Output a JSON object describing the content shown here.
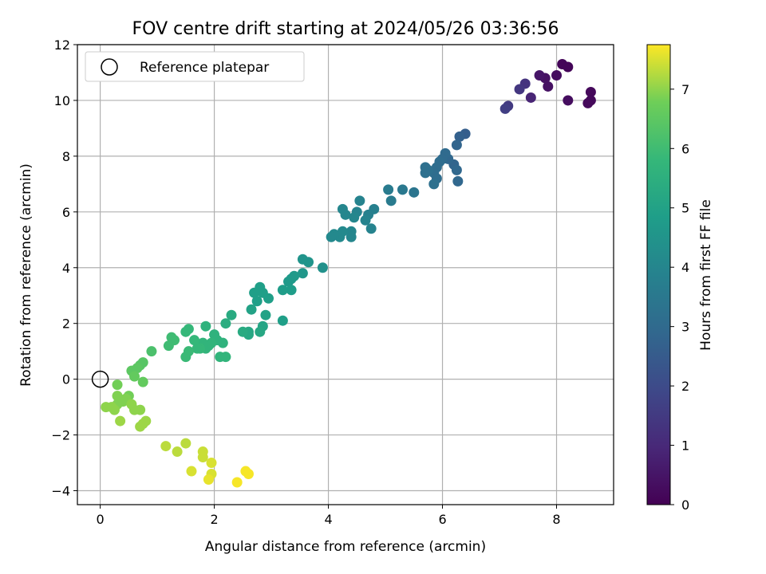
{
  "chart_data": {
    "type": "scatter",
    "title": "FOV centre drift starting at 2024/05/26 03:36:56",
    "xlabel": "Angular distance from reference (arcmin)",
    "ylabel": "Rotation from reference (arcmin)",
    "xlim": [
      -0.4,
      9.0
    ],
    "ylim": [
      -4.5,
      12.0
    ],
    "xticks": [
      0,
      2,
      4,
      6,
      8
    ],
    "xtick_labels": [
      "0",
      "2",
      "4",
      "6",
      "8"
    ],
    "yticks": [
      -4,
      -2,
      0,
      2,
      4,
      6,
      8,
      10,
      12
    ],
    "ytick_labels": [
      "−4",
      "−2",
      "0",
      "2",
      "4",
      "6",
      "8",
      "10",
      "12"
    ],
    "grid": true,
    "legend": {
      "placement": "top-left",
      "entries": [
        "Reference platepar"
      ]
    },
    "reference_point": {
      "x": 0,
      "y": 0,
      "label": "Reference platepar"
    },
    "colorbar": {
      "label": "Hours from first FF file",
      "colormap": "viridis",
      "range": [
        0,
        7.75
      ],
      "ticks": [
        0,
        1,
        2,
        3,
        4,
        5,
        6,
        7
      ],
      "tick_labels": [
        "0",
        "1",
        "2",
        "3",
        "4",
        "5",
        "6",
        "7"
      ]
    },
    "points": [
      {
        "x": 8.1,
        "y": 11.3,
        "c": 0.1
      },
      {
        "x": 8.2,
        "y": 11.2,
        "c": 0.1
      },
      {
        "x": 8.6,
        "y": 10.3,
        "c": 0.2
      },
      {
        "x": 8.6,
        "y": 10.0,
        "c": 0.2
      },
      {
        "x": 8.55,
        "y": 9.9,
        "c": 0.2
      },
      {
        "x": 8.2,
        "y": 10.0,
        "c": 0.3
      },
      {
        "x": 8.0,
        "y": 10.9,
        "c": 0.3
      },
      {
        "x": 7.85,
        "y": 10.5,
        "c": 0.4
      },
      {
        "x": 7.8,
        "y": 10.8,
        "c": 0.4
      },
      {
        "x": 7.7,
        "y": 10.9,
        "c": 0.5
      },
      {
        "x": 7.55,
        "y": 10.1,
        "c": 0.9
      },
      {
        "x": 7.45,
        "y": 10.6,
        "c": 1.3
      },
      {
        "x": 7.35,
        "y": 10.4,
        "c": 1.4
      },
      {
        "x": 7.15,
        "y": 9.8,
        "c": 1.5
      },
      {
        "x": 7.1,
        "y": 9.7,
        "c": 1.6
      },
      {
        "x": 6.4,
        "y": 8.8,
        "c": 2.6
      },
      {
        "x": 6.3,
        "y": 8.7,
        "c": 2.7
      },
      {
        "x": 6.25,
        "y": 8.4,
        "c": 2.8
      },
      {
        "x": 6.2,
        "y": 7.7,
        "c": 2.8
      },
      {
        "x": 6.1,
        "y": 7.9,
        "c": 2.9
      },
      {
        "x": 6.25,
        "y": 7.5,
        "c": 2.9
      },
      {
        "x": 6.27,
        "y": 7.1,
        "c": 2.9
      },
      {
        "x": 6.05,
        "y": 8.1,
        "c": 3.0
      },
      {
        "x": 6.0,
        "y": 7.9,
        "c": 3.0
      },
      {
        "x": 5.95,
        "y": 7.8,
        "c": 3.1
      },
      {
        "x": 5.9,
        "y": 7.6,
        "c": 3.1
      },
      {
        "x": 5.85,
        "y": 7.4,
        "c": 3.1
      },
      {
        "x": 5.9,
        "y": 7.2,
        "c": 3.1
      },
      {
        "x": 5.85,
        "y": 7.0,
        "c": 3.2
      },
      {
        "x": 5.75,
        "y": 7.5,
        "c": 3.2
      },
      {
        "x": 5.7,
        "y": 7.6,
        "c": 3.2
      },
      {
        "x": 5.7,
        "y": 7.4,
        "c": 3.2
      },
      {
        "x": 5.5,
        "y": 6.7,
        "c": 3.4
      },
      {
        "x": 5.3,
        "y": 6.8,
        "c": 3.5
      },
      {
        "x": 5.05,
        "y": 6.8,
        "c": 3.6
      },
      {
        "x": 5.1,
        "y": 6.4,
        "c": 3.6
      },
      {
        "x": 4.8,
        "y": 6.1,
        "c": 3.8
      },
      {
        "x": 4.7,
        "y": 5.9,
        "c": 3.8
      },
      {
        "x": 4.75,
        "y": 5.4,
        "c": 3.9
      },
      {
        "x": 4.65,
        "y": 5.7,
        "c": 3.9
      },
      {
        "x": 4.55,
        "y": 6.4,
        "c": 3.9
      },
      {
        "x": 4.5,
        "y": 6.0,
        "c": 3.9
      },
      {
        "x": 4.45,
        "y": 5.8,
        "c": 4.0
      },
      {
        "x": 4.4,
        "y": 5.3,
        "c": 4.0
      },
      {
        "x": 4.4,
        "y": 5.1,
        "c": 4.0
      },
      {
        "x": 4.3,
        "y": 5.9,
        "c": 4.0
      },
      {
        "x": 4.25,
        "y": 6.1,
        "c": 4.0
      },
      {
        "x": 4.25,
        "y": 5.3,
        "c": 4.1
      },
      {
        "x": 4.2,
        "y": 5.1,
        "c": 4.1
      },
      {
        "x": 4.1,
        "y": 5.2,
        "c": 4.1
      },
      {
        "x": 4.05,
        "y": 5.1,
        "c": 4.1
      },
      {
        "x": 3.9,
        "y": 4.0,
        "c": 4.4
      },
      {
        "x": 3.65,
        "y": 4.2,
        "c": 4.5
      },
      {
        "x": 3.55,
        "y": 4.3,
        "c": 4.5
      },
      {
        "x": 3.55,
        "y": 3.8,
        "c": 4.6
      },
      {
        "x": 3.4,
        "y": 3.7,
        "c": 4.7
      },
      {
        "x": 3.35,
        "y": 3.6,
        "c": 4.7
      },
      {
        "x": 3.3,
        "y": 3.5,
        "c": 4.7
      },
      {
        "x": 3.35,
        "y": 3.2,
        "c": 4.8
      },
      {
        "x": 3.2,
        "y": 3.2,
        "c": 4.8
      },
      {
        "x": 3.2,
        "y": 2.1,
        "c": 4.9
      },
      {
        "x": 2.95,
        "y": 2.9,
        "c": 4.9
      },
      {
        "x": 2.9,
        "y": 2.3,
        "c": 5.0
      },
      {
        "x": 2.85,
        "y": 3.1,
        "c": 4.9
      },
      {
        "x": 2.8,
        "y": 3.3,
        "c": 4.9
      },
      {
        "x": 2.7,
        "y": 3.1,
        "c": 4.9
      },
      {
        "x": 2.75,
        "y": 2.8,
        "c": 4.9
      },
      {
        "x": 2.65,
        "y": 2.5,
        "c": 5.0
      },
      {
        "x": 2.85,
        "y": 1.9,
        "c": 5.1
      },
      {
        "x": 2.8,
        "y": 1.7,
        "c": 5.2
      },
      {
        "x": 2.6,
        "y": 1.7,
        "c": 5.2
      },
      {
        "x": 2.6,
        "y": 1.6,
        "c": 5.2
      },
      {
        "x": 2.5,
        "y": 1.7,
        "c": 5.3
      },
      {
        "x": 2.3,
        "y": 2.3,
        "c": 5.3
      },
      {
        "x": 2.2,
        "y": 2.0,
        "c": 5.4
      },
      {
        "x": 2.15,
        "y": 1.3,
        "c": 5.6
      },
      {
        "x": 2.1,
        "y": 0.8,
        "c": 5.7
      },
      {
        "x": 2.2,
        "y": 0.8,
        "c": 5.7
      },
      {
        "x": 2.0,
        "y": 1.6,
        "c": 5.6
      },
      {
        "x": 2.05,
        "y": 1.4,
        "c": 5.6
      },
      {
        "x": 1.95,
        "y": 1.3,
        "c": 5.7
      },
      {
        "x": 1.85,
        "y": 1.9,
        "c": 5.6
      },
      {
        "x": 1.9,
        "y": 1.2,
        "c": 5.7
      },
      {
        "x": 1.85,
        "y": 1.1,
        "c": 5.7
      },
      {
        "x": 1.8,
        "y": 1.3,
        "c": 5.7
      },
      {
        "x": 1.75,
        "y": 1.1,
        "c": 5.8
      },
      {
        "x": 1.7,
        "y": 1.1,
        "c": 5.8
      },
      {
        "x": 1.65,
        "y": 1.4,
        "c": 5.8
      },
      {
        "x": 1.55,
        "y": 1.8,
        "c": 5.8
      },
      {
        "x": 1.5,
        "y": 1.7,
        "c": 5.8
      },
      {
        "x": 1.55,
        "y": 1.0,
        "c": 5.9
      },
      {
        "x": 1.5,
        "y": 0.8,
        "c": 5.9
      },
      {
        "x": 1.3,
        "y": 1.4,
        "c": 6.0
      },
      {
        "x": 1.25,
        "y": 1.5,
        "c": 6.0
      },
      {
        "x": 1.2,
        "y": 1.2,
        "c": 6.0
      },
      {
        "x": 0.9,
        "y": 1.0,
        "c": 6.2
      },
      {
        "x": 0.75,
        "y": 0.6,
        "c": 6.4
      },
      {
        "x": 0.7,
        "y": 0.5,
        "c": 6.4
      },
      {
        "x": 0.65,
        "y": 0.4,
        "c": 6.5
      },
      {
        "x": 0.55,
        "y": 0.3,
        "c": 6.5
      },
      {
        "x": 0.6,
        "y": 0.1,
        "c": 6.6
      },
      {
        "x": 0.75,
        "y": -0.1,
        "c": 6.6
      },
      {
        "x": 0.3,
        "y": -0.2,
        "c": 6.8
      },
      {
        "x": 0.5,
        "y": -0.6,
        "c": 6.8
      },
      {
        "x": 0.45,
        "y": -0.7,
        "c": 6.9
      },
      {
        "x": 0.3,
        "y": -0.6,
        "c": 6.9
      },
      {
        "x": 0.4,
        "y": -0.8,
        "c": 6.9
      },
      {
        "x": 0.3,
        "y": -0.9,
        "c": 6.9
      },
      {
        "x": 0.2,
        "y": -1.0,
        "c": 7.0
      },
      {
        "x": 0.1,
        "y": -1.0,
        "c": 7.0
      },
      {
        "x": 0.25,
        "y": -1.1,
        "c": 7.0
      },
      {
        "x": 0.55,
        "y": -0.9,
        "c": 7.0
      },
      {
        "x": 0.6,
        "y": -1.1,
        "c": 7.0
      },
      {
        "x": 0.7,
        "y": -1.1,
        "c": 7.0
      },
      {
        "x": 0.35,
        "y": -1.5,
        "c": 7.1
      },
      {
        "x": 0.8,
        "y": -1.5,
        "c": 7.1
      },
      {
        "x": 0.75,
        "y": -1.6,
        "c": 7.1
      },
      {
        "x": 0.7,
        "y": -1.7,
        "c": 7.1
      },
      {
        "x": 1.15,
        "y": -2.4,
        "c": 7.3
      },
      {
        "x": 1.35,
        "y": -2.6,
        "c": 7.3
      },
      {
        "x": 1.5,
        "y": -2.3,
        "c": 7.3
      },
      {
        "x": 1.6,
        "y": -3.3,
        "c": 7.5
      },
      {
        "x": 1.8,
        "y": -2.6,
        "c": 7.4
      },
      {
        "x": 1.8,
        "y": -2.8,
        "c": 7.4
      },
      {
        "x": 1.95,
        "y": -3.0,
        "c": 7.5
      },
      {
        "x": 1.95,
        "y": -3.4,
        "c": 7.5
      },
      {
        "x": 1.9,
        "y": -3.6,
        "c": 7.6
      },
      {
        "x": 2.4,
        "y": -3.7,
        "c": 7.7
      },
      {
        "x": 2.55,
        "y": -3.3,
        "c": 7.7
      },
      {
        "x": 2.6,
        "y": -3.4,
        "c": 7.7
      }
    ]
  }
}
